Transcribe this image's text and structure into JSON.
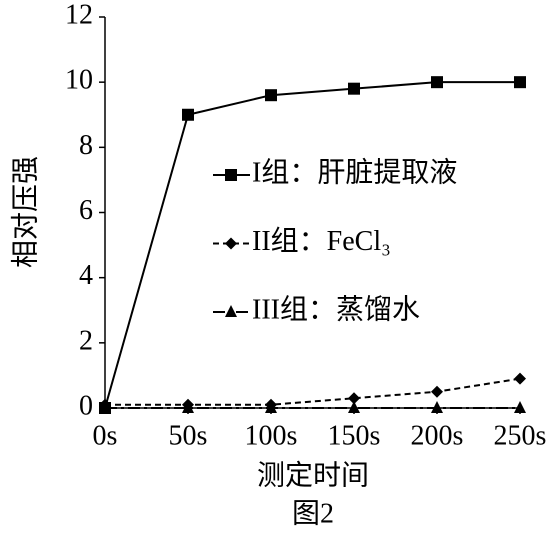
{
  "chart_data": {
    "type": "line",
    "x": [
      0,
      50,
      100,
      150,
      200,
      250
    ],
    "xlim": [
      0,
      250
    ],
    "xticks": [
      {
        "value": 0,
        "label": "0s"
      },
      {
        "value": 50,
        "label": "50s"
      },
      {
        "value": 100,
        "label": "100s"
      },
      {
        "value": 150,
        "label": "150s"
      },
      {
        "value": 200,
        "label": "200s"
      },
      {
        "value": 250,
        "label": "250s"
      }
    ],
    "ylim": [
      0,
      12
    ],
    "yticks": [
      0,
      2,
      4,
      6,
      8,
      10,
      12
    ],
    "x_label": "测定时间",
    "y_label": "相对压强",
    "caption": "图2",
    "series": [
      {
        "name": "I组：肝脏提取液",
        "color": "#000000",
        "dash": "solid",
        "marker": "square",
        "values": [
          0,
          9,
          9.6,
          9.8,
          10,
          10
        ]
      },
      {
        "name": "II组：FeCl₃",
        "color": "#000000",
        "dash": "dashed",
        "marker": "diamond",
        "values": [
          0.1,
          0.1,
          0.1,
          0.3,
          0.5,
          0.9
        ]
      },
      {
        "name": "III组：蒸馏水",
        "color": "#000000",
        "dash": "dashdot",
        "marker": "triangle",
        "values": [
          0,
          0,
          0,
          0,
          0,
          0
        ]
      }
    ]
  }
}
